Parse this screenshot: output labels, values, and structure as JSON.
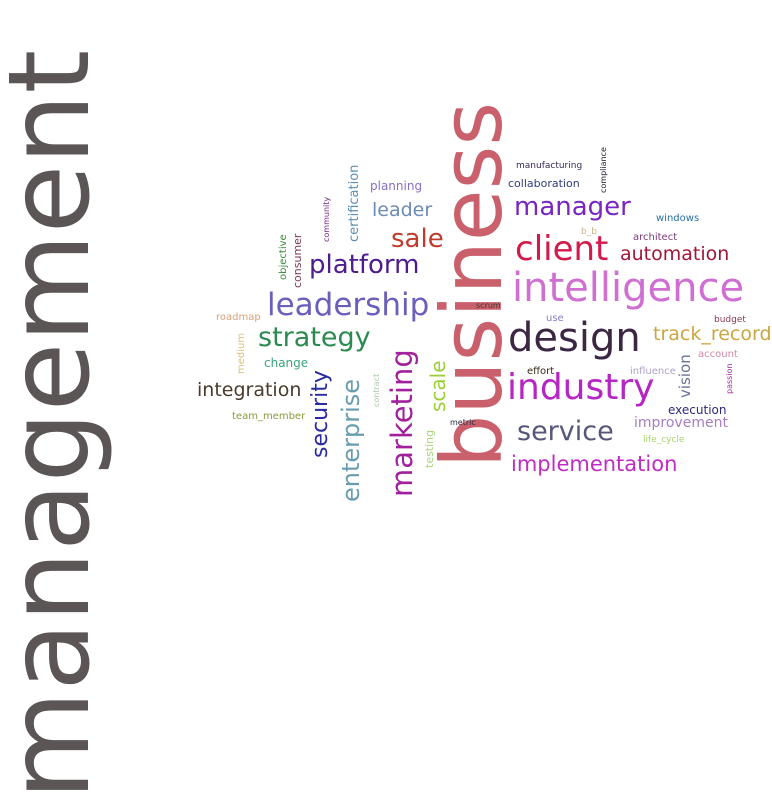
{
  "words": [
    {
      "text": "management",
      "color": "#5b5655"
    },
    {
      "text": "business",
      "color": "#c9606b"
    },
    {
      "text": "intelligence",
      "color": "#cf6fd2"
    },
    {
      "text": "design",
      "color": "#3b2742"
    },
    {
      "text": "industry",
      "color": "#b626c5"
    },
    {
      "text": "client",
      "color": "#d41a4a"
    },
    {
      "text": "leadership",
      "color": "#6a5fba"
    },
    {
      "text": "manager",
      "color": "#7a25c2"
    },
    {
      "text": "platform",
      "color": "#4d1c8e"
    },
    {
      "text": "marketing",
      "color": "#a1219c"
    },
    {
      "text": "strategy",
      "color": "#2a8a50"
    },
    {
      "text": "enterprise",
      "color": "#6a9cb0"
    },
    {
      "text": "service",
      "color": "#56567a"
    },
    {
      "text": "implementation",
      "color": "#c02bc4"
    },
    {
      "text": "sale",
      "color": "#bd3c2b"
    },
    {
      "text": "automation",
      "color": "#a01636"
    },
    {
      "text": "security",
      "color": "#2a2ba1"
    },
    {
      "text": "track_record",
      "color": "#c9a63f"
    },
    {
      "text": "leader",
      "color": "#6d8ab4"
    },
    {
      "text": "integration",
      "color": "#4a3a2a"
    },
    {
      "text": "scale",
      "color": "#9bd039"
    },
    {
      "text": "certification",
      "color": "#5e8fb2"
    },
    {
      "text": "vision",
      "color": "#6a7296"
    },
    {
      "text": "improvement",
      "color": "#a77dc4"
    },
    {
      "text": "planning",
      "color": "#8a6fc4"
    },
    {
      "text": "collaboration",
      "color": "#2e3f7a"
    },
    {
      "text": "execution",
      "color": "#2e2a7a"
    },
    {
      "text": "change",
      "color": "#3aa47a"
    },
    {
      "text": "consumer",
      "color": "#7a3a4a"
    },
    {
      "text": "testing",
      "color": "#a9d47a"
    },
    {
      "text": "influence",
      "color": "#b1a0c7"
    },
    {
      "text": "roadmap",
      "color": "#d9a07a"
    },
    {
      "text": "architect",
      "color": "#7a3a7a"
    },
    {
      "text": "windows",
      "color": "#2a6fa8"
    },
    {
      "text": "account",
      "color": "#d18aa7"
    },
    {
      "text": "medium",
      "color": "#d9c17a"
    },
    {
      "text": "team_member",
      "color": "#8a9a3a"
    },
    {
      "text": "objective",
      "color": "#3a8a3a"
    },
    {
      "text": "manufacturing",
      "color": "#3a2a5a"
    },
    {
      "text": "effort",
      "color": "#3a2a1a"
    },
    {
      "text": "use",
      "color": "#8a7ac4"
    },
    {
      "text": "budget",
      "color": "#8a3a5a"
    },
    {
      "text": "community",
      "color": "#7a2a8a"
    },
    {
      "text": "passion",
      "color": "#a12aa0"
    },
    {
      "text": "metric",
      "color": "#2a2a3a"
    },
    {
      "text": "life_cycle",
      "color": "#a3d46a"
    },
    {
      "text": "contract",
      "color": "#a9c8a9"
    },
    {
      "text": "compliance",
      "color": "#1a1a2a"
    },
    {
      "text": "scrum",
      "color": "#3a3a3a"
    },
    {
      "text": "b_b",
      "color": "#c9b48a"
    }
  ]
}
